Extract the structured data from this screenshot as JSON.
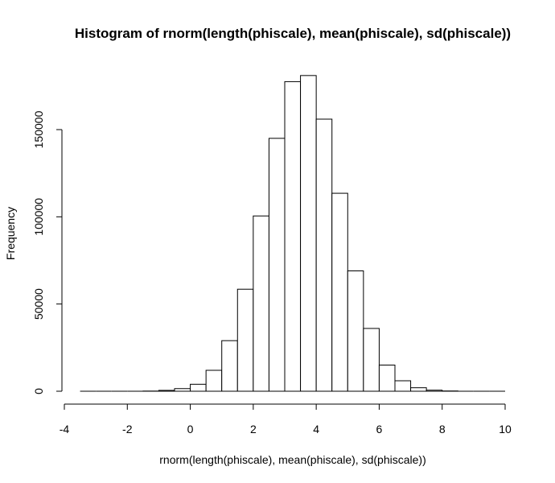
{
  "chart_data": {
    "type": "bar",
    "title": "Histogram of rnorm(length(phiscale), mean(phiscale), sd(phiscale))",
    "xlabel": "rnorm(length(phiscale), mean(phiscale), sd(phiscale))",
    "ylabel": "Frequency",
    "xlim": [
      -4,
      10
    ],
    "ylim": [
      0,
      185000
    ],
    "x_ticks": [
      "-4",
      "-2",
      "0",
      "2",
      "4",
      "6",
      "8",
      "10"
    ],
    "x_tick_values": [
      -4,
      -2,
      0,
      2,
      4,
      6,
      8,
      10
    ],
    "y_ticks": [
      "0",
      "50000",
      "100000",
      "150000"
    ],
    "y_tick_values": [
      0,
      50000,
      100000,
      150000
    ],
    "bin_width": 0.5,
    "bins": [
      {
        "start": -3.5,
        "end": -3.0,
        "count": 0
      },
      {
        "start": -3.0,
        "end": -2.5,
        "count": 0
      },
      {
        "start": -2.5,
        "end": -2.0,
        "count": 0
      },
      {
        "start": -2.0,
        "end": -1.5,
        "count": 0
      },
      {
        "start": -1.5,
        "end": -1.0,
        "count": 100
      },
      {
        "start": -1.0,
        "end": -0.5,
        "count": 500
      },
      {
        "start": -0.5,
        "end": 0.0,
        "count": 1500
      },
      {
        "start": 0.0,
        "end": 0.5,
        "count": 4000
      },
      {
        "start": 0.5,
        "end": 1.0,
        "count": 12000
      },
      {
        "start": 1.0,
        "end": 1.5,
        "count": 29000
      },
      {
        "start": 1.5,
        "end": 2.0,
        "count": 58500
      },
      {
        "start": 2.0,
        "end": 2.5,
        "count": 100500
      },
      {
        "start": 2.5,
        "end": 3.0,
        "count": 145000
      },
      {
        "start": 3.0,
        "end": 3.5,
        "count": 177500
      },
      {
        "start": 3.5,
        "end": 4.0,
        "count": 181000
      },
      {
        "start": 4.0,
        "end": 4.5,
        "count": 156000
      },
      {
        "start": 4.5,
        "end": 5.0,
        "count": 113500
      },
      {
        "start": 5.0,
        "end": 5.5,
        "count": 69000
      },
      {
        "start": 5.5,
        "end": 6.0,
        "count": 36000
      },
      {
        "start": 6.0,
        "end": 6.5,
        "count": 15000
      },
      {
        "start": 6.5,
        "end": 7.0,
        "count": 6000
      },
      {
        "start": 7.0,
        "end": 7.5,
        "count": 2000
      },
      {
        "start": 7.5,
        "end": 8.0,
        "count": 600
      },
      {
        "start": 8.0,
        "end": 8.5,
        "count": 150
      },
      {
        "start": 8.5,
        "end": 9.0,
        "count": 0
      },
      {
        "start": 9.0,
        "end": 9.5,
        "count": 0
      },
      {
        "start": 9.5,
        "end": 10.0,
        "count": 0
      }
    ],
    "grid": false,
    "legend": "none",
    "colors": {
      "bar_fill": "#ffffff",
      "bar_stroke": "#000000",
      "background": "#ffffff"
    }
  }
}
